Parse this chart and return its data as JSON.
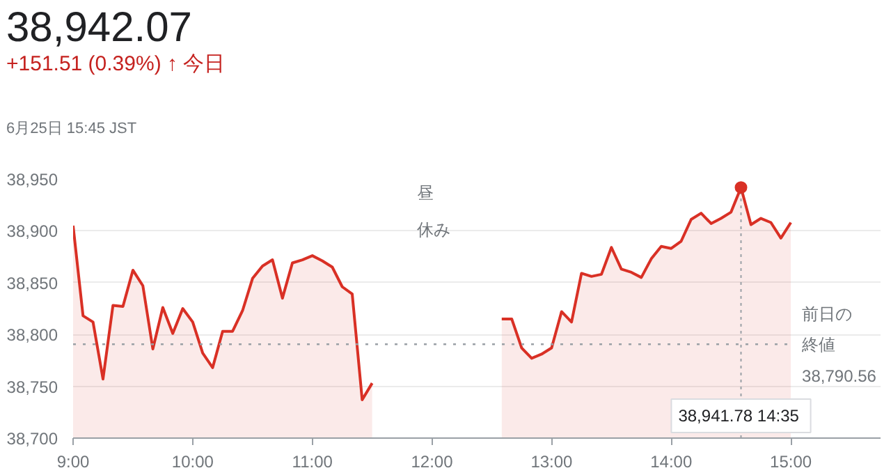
{
  "chart_data": {
    "type": "area",
    "title": "38,942.07",
    "subtitle": "+151.51 (0.39%) ↑ 今日",
    "annotations": [
      "6月25日 15:45 JST",
      "昼休み",
      {
        "text": "38,941.78  14:35",
        "x": 14.5833,
        "y": 38941.78
      }
    ],
    "x": [
      9.0,
      9.0833,
      9.1667,
      9.25,
      9.3333,
      9.4167,
      9.5,
      9.5833,
      9.6667,
      9.75,
      9.8333,
      9.9167,
      10.0,
      10.0833,
      10.1667,
      10.25,
      10.3333,
      10.4167,
      10.5,
      10.5833,
      10.6667,
      10.75,
      10.8333,
      10.9167,
      11.0,
      11.0833,
      11.1667,
      11.25,
      11.3333,
      11.4167,
      11.5,
      12.0,
      12.5833,
      12.6667,
      12.75,
      12.8333,
      12.9167,
      13.0,
      13.0833,
      13.1667,
      13.25,
      13.3333,
      13.4167,
      13.5,
      13.5833,
      13.6667,
      13.75,
      13.8333,
      13.9167,
      14.0,
      14.0833,
      14.1667,
      14.25,
      14.3333,
      14.4167,
      14.5,
      14.5833,
      14.6667,
      14.75,
      14.8333,
      14.9167,
      15.0
    ],
    "series": [
      {
        "color": "#d93025",
        "values": [
          38905,
          38818,
          38812,
          38757,
          38828,
          38827,
          38862,
          38847,
          38786,
          38826,
          38801,
          38825,
          38812,
          38782,
          38768,
          38803,
          38803,
          38823,
          38854,
          38866,
          38872,
          38835,
          38869,
          38872,
          38876,
          38871,
          38865,
          38846,
          38839,
          38737,
          38753,
          null,
          38815,
          38815,
          38787,
          38777,
          38781,
          38787,
          38822,
          38812,
          38859,
          38856,
          38858,
          38884,
          38863,
          38860,
          38855,
          38873,
          38885,
          38883,
          38890,
          38911,
          38917,
          38907,
          38912,
          38918,
          38941.78,
          38906,
          38912,
          38908,
          38893,
          38908
        ]
      }
    ],
    "xlim": [
      9,
      15.75
    ],
    "ylim": [
      38700,
      38950
    ],
    "xticks": [
      {
        "value": 9,
        "label": "9:00"
      },
      {
        "value": 10,
        "label": "10:00"
      },
      {
        "value": 11,
        "label": "11:00"
      },
      {
        "value": 12,
        "label": "12:00"
      },
      {
        "value": 13,
        "label": "13:00"
      },
      {
        "value": 14,
        "label": "14:00"
      },
      {
        "value": 15,
        "label": "15:00"
      }
    ],
    "yticks": [
      {
        "value": 38700,
        "label": "38,700"
      },
      {
        "value": 38750,
        "label": "38,750"
      },
      {
        "value": 38800,
        "label": "38,800"
      },
      {
        "value": 38850,
        "label": "38,850"
      },
      {
        "value": 38900,
        "label": "38,900"
      },
      {
        "value": 38950,
        "label": "38,950"
      }
    ],
    "ref_lines": [
      {
        "axis": "y",
        "value": 38790.56,
        "label": "前日の終値\n38,790.56",
        "color": "#9aa0a6",
        "line_style": "dotted"
      }
    ],
    "grid": "y"
  }
}
